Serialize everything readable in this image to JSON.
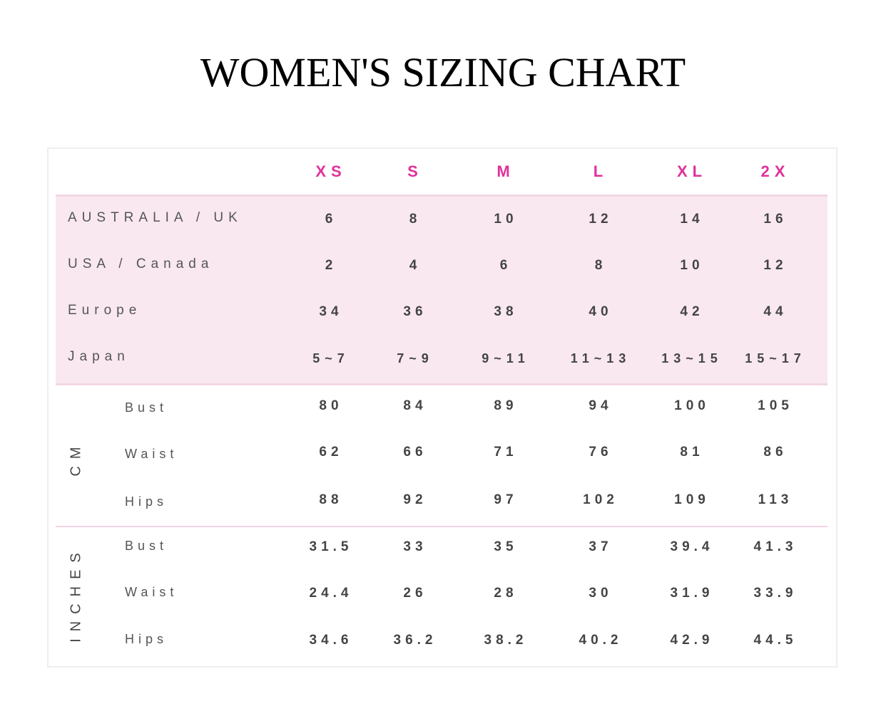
{
  "title": "WOMEN'S SIZING CHART",
  "sizes": [
    "XS",
    "S",
    "M",
    "L",
    "XL",
    "2X"
  ],
  "regions": [
    {
      "label": "AUSTRALIA / UK",
      "values": [
        "6",
        "8",
        "10",
        "12",
        "14",
        "16"
      ]
    },
    {
      "label": "USA / Canada",
      "values": [
        "2",
        "4",
        "6",
        "8",
        "10",
        "12"
      ]
    },
    {
      "label": "Europe",
      "values": [
        "34",
        "36",
        "38",
        "40",
        "42",
        "44"
      ]
    },
    {
      "label": "Japan",
      "values": [
        "5~7",
        "7~9",
        "9~11",
        "11~13",
        "13~15",
        "15~17"
      ]
    }
  ],
  "cm": {
    "label": "CM",
    "rows": [
      {
        "label": "Bust",
        "values": [
          "80",
          "84",
          "89",
          "94",
          "100",
          "105"
        ]
      },
      {
        "label": "Waist",
        "values": [
          "62",
          "66",
          "71",
          "76",
          "81",
          "86"
        ]
      },
      {
        "label": "Hips",
        "values": [
          "88",
          "92",
          "97",
          "102",
          "109",
          "113"
        ]
      }
    ]
  },
  "inches": {
    "label": "INCHES",
    "rows": [
      {
        "label": "Bust",
        "values": [
          "31.5",
          "33",
          "35",
          "37",
          "39.4",
          "41.3"
        ]
      },
      {
        "label": "Waist",
        "values": [
          "24.4",
          "26",
          "28",
          "30",
          "31.9",
          "33.9"
        ]
      },
      {
        "label": "Hips",
        "values": [
          "34.6",
          "36.2",
          "38.2",
          "40.2",
          "42.9",
          "44.5"
        ]
      }
    ]
  },
  "colors": {
    "accent": "#e0319a",
    "band": "#f9e8f0",
    "text": "#444444"
  }
}
